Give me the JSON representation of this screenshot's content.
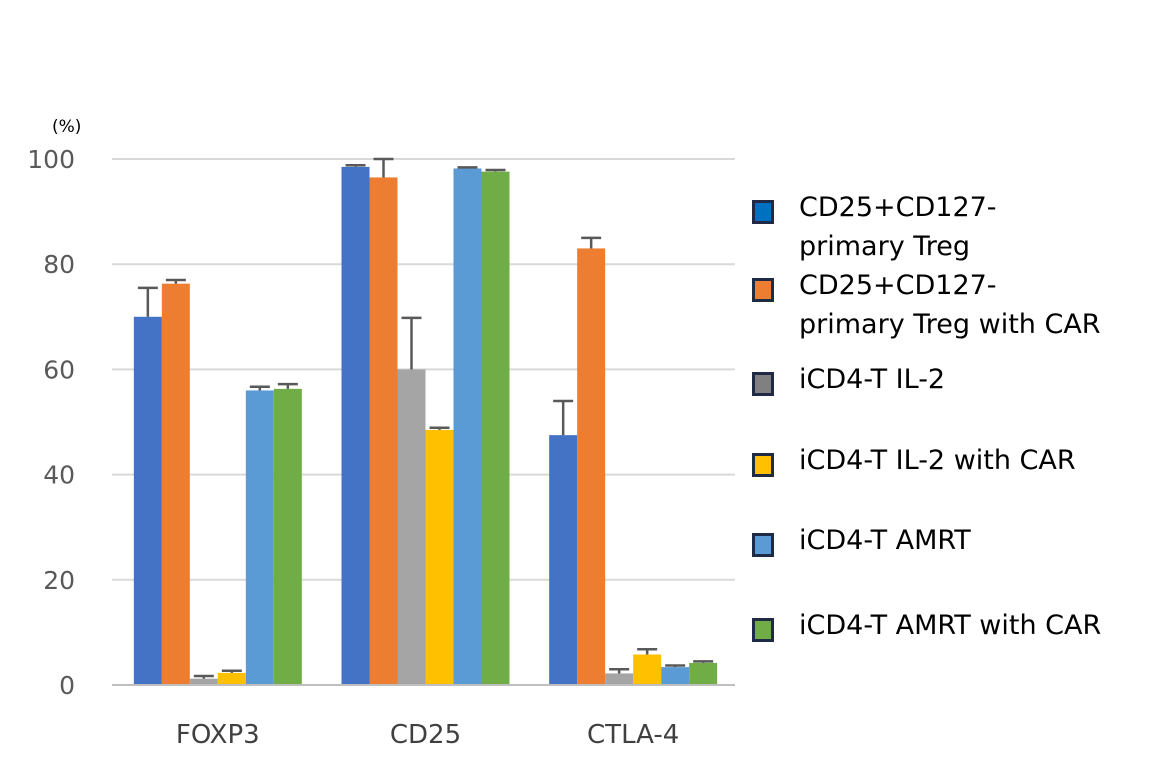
{
  "chart_data": {
    "type": "bar",
    "unit_label": "(%)",
    "categories": [
      "FOXP3",
      "CD25",
      "CTLA-4"
    ],
    "ylim": [
      0,
      100
    ],
    "yticks": [
      "0",
      "20",
      "40",
      "60",
      "80",
      "100"
    ],
    "grid": true,
    "legend_position": "right",
    "series": [
      {
        "name": "CD25+CD127- primary Treg",
        "label_lines": [
          "CD25+CD127-",
          "primary Treg"
        ],
        "color": "#4472c4",
        "swatch_color": "#0070c0",
        "values": [
          70,
          98.5,
          47.5
        ],
        "errors": [
          5.5,
          0.3,
          6.5
        ]
      },
      {
        "name": "CD25+CD127- primary Treg with CAR",
        "label_lines": [
          "CD25+CD127-",
          "primary Treg with CAR"
        ],
        "color": "#ed7d31",
        "swatch_color": "#ed7d31",
        "values": [
          76.3,
          96.5,
          83
        ],
        "errors": [
          0.7,
          3.5,
          2
        ]
      },
      {
        "name": "iCD4-T IL-2",
        "label_lines": [
          "iCD4-T IL-2"
        ],
        "color": "#a5a5a5",
        "swatch_color": "#808080",
        "values": [
          1.2,
          60,
          2.2
        ],
        "errors": [
          0.5,
          9.8,
          0.8
        ]
      },
      {
        "name": "iCD4-T IL-2 with CAR",
        "label_lines": [
          "iCD4-T IL-2 with CAR"
        ],
        "color": "#ffc000",
        "swatch_color": "#ffc000",
        "values": [
          2.3,
          48.5,
          5.8
        ],
        "errors": [
          0.4,
          0.4,
          1
        ]
      },
      {
        "name": "iCD4-T AMRT",
        "label_lines": [
          "iCD4-T AMRT"
        ],
        "color": "#5b9bd5",
        "swatch_color": "#5b9bd5",
        "values": [
          56,
          98.2,
          3.4
        ],
        "errors": [
          0.7,
          0.2,
          0.3
        ]
      },
      {
        "name": "iCD4-T AMRT with CAR",
        "label_lines": [
          "iCD4-T AMRT with CAR"
        ],
        "color": "#70ad47",
        "swatch_color": "#70ad47",
        "values": [
          56.3,
          97.6,
          4.2
        ],
        "errors": [
          0.9,
          0.3,
          0.3
        ]
      }
    ]
  }
}
